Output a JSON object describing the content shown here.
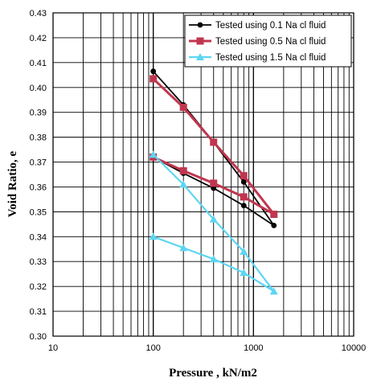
{
  "chart_data": {
    "type": "line",
    "title": "",
    "xlabel": "Pressure , kN/m2",
    "ylabel": "Void Ratio, e",
    "xscale": "log",
    "xlim": [
      10,
      10000
    ],
    "ylim": [
      0.3,
      0.43
    ],
    "x_ticks": [
      10,
      100,
      1000,
      10000
    ],
    "x_tick_labels": [
      "10",
      "100",
      "1000",
      "10000"
    ],
    "y_ticks": [
      0.3,
      0.31,
      0.32,
      0.33,
      0.34,
      0.35,
      0.36,
      0.37,
      0.38,
      0.39,
      0.4,
      0.41,
      0.42,
      0.43
    ],
    "y_tick_labels": [
      "0.30",
      "0.31",
      "0.32",
      "0.33",
      "0.34",
      "0.35",
      "0.36",
      "0.37",
      "0.38",
      "0.39",
      "0.40",
      "0.41",
      "0.42",
      "0.43"
    ],
    "grid": true,
    "legend_position": "top-right",
    "series": [
      {
        "name": "Tested using 0.1 Na cl fluid",
        "color": "#000000",
        "marker": "circle",
        "x": [
          100,
          200,
          400,
          800,
          1600,
          800,
          400,
          200,
          100
        ],
        "y": [
          0.4065,
          0.393,
          0.378,
          0.362,
          0.3445,
          0.3525,
          0.3595,
          0.3655,
          0.372
        ]
      },
      {
        "name": "Tested using 0.5 Na cl fluid",
        "color": "#c0364f",
        "marker": "square",
        "x": [
          100,
          200,
          400,
          800,
          1600,
          800,
          400,
          200,
          100
        ],
        "y": [
          0.4035,
          0.392,
          0.378,
          0.3645,
          0.349,
          0.356,
          0.3615,
          0.3665,
          0.372
        ]
      },
      {
        "name": "Tested using 1.5 Na cl fluid",
        "color": "#5cd6f2",
        "marker": "triangle",
        "x": [
          100,
          200,
          400,
          800,
          1600,
          800,
          400,
          200,
          100
        ],
        "y": [
          0.373,
          0.361,
          0.347,
          0.334,
          0.318,
          0.3255,
          0.331,
          0.3355,
          0.34
        ]
      }
    ]
  }
}
